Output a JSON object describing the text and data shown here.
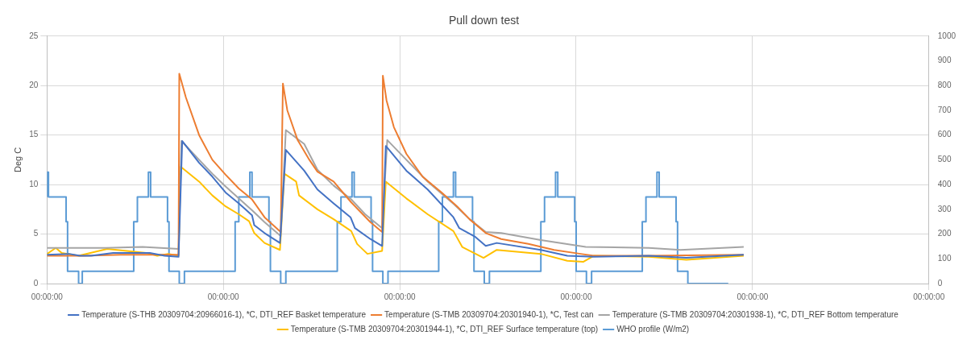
{
  "chart_data": {
    "type": "line",
    "title": "Pull down test",
    "ylabel": "Deg C",
    "xlim": [
      "--01-01T00:00",
      "--01-06T00:00"
    ],
    "xticks": [
      {
        "value": "--01-01T00:00",
        "label": "00:00:00"
      },
      {
        "value": "--01-02T00:00",
        "label": "00:00:00"
      },
      {
        "value": "--01-03T00:00",
        "label": "00:00:00"
      },
      {
        "value": "--01-04T00:00",
        "label": "00:00:00"
      },
      {
        "value": "--01-05T00:00",
        "label": "00:00:00"
      },
      {
        "value": "--01-06T00:00",
        "label": "00:00:00"
      }
    ],
    "ylim": [
      0,
      25
    ],
    "yticks": [
      0,
      5,
      10,
      15,
      20,
      25
    ],
    "y2lim": [
      0,
      1000
    ],
    "y2ticks": [
      0,
      100,
      200,
      300,
      400,
      500,
      600,
      700,
      800,
      900,
      1000
    ],
    "grid": true,
    "legend": "bottom",
    "line_style": "solid",
    "series": [
      {
        "name": "Temperature (S-THB 20309704:20966016-1), *C, DTI_REF Basket temperature",
        "color": "#4472c4",
        "x": [
          "--01-01T00:00",
          "--01-01T03:00",
          "--01-01T04:30",
          "--01-01T06:00",
          "--01-01T09:00",
          "--01-01T14:00",
          "--01-01T16:00",
          "--01-01T17:54",
          "--01-01T18:24",
          "--01-01T20:42",
          "--01-01T22:30",
          "--01-02T00:18",
          "--01-02T02:06",
          "--01-02T03:54",
          "--01-02T04:12",
          "--01-02T05:36",
          "--01-02T07:42",
          "--01-02T08:30",
          "--01-02T11:00",
          "--01-02T12:48",
          "--01-02T15:00",
          "--01-02T17:18",
          "--01-02T17:54",
          "--01-02T20:00",
          "--01-02T21:36",
          "--01-02T22:06",
          "--01-03T00:54",
          "--01-03T03:48",
          "--01-03T07:18",
          "--01-03T08:06",
          "--01-03T10:18",
          "--01-03T11:42",
          "--01-03T13:12",
          "--01-03T19:12",
          "--01-03T22:48",
          "--01-04T02:24",
          "--01-04T09:54",
          "--01-04T15:00",
          "--01-04T22:48"
        ],
        "values": [
          2.9,
          3.0,
          2.8,
          2.8,
          3.1,
          3.1,
          2.8,
          2.7,
          14.4,
          12.2,
          10.8,
          9.2,
          8.1,
          6.9,
          5.9,
          5.1,
          4.1,
          13.5,
          11.4,
          9.5,
          8.1,
          6.7,
          5.6,
          4.5,
          3.8,
          13.9,
          11.4,
          9.5,
          6.7,
          5.6,
          4.7,
          3.8,
          4.1,
          3.4,
          2.8,
          2.7,
          2.8,
          2.6,
          2.9
        ]
      },
      {
        "name": "Temperature (S-TMB 20309704:20301940-1), *C, Test can",
        "color": "#ed7d31",
        "x": [
          "--01-01T00:00",
          "--01-01T05:00",
          "--01-01T10:00",
          "--01-01T15:00",
          "--01-01T17:54",
          "--01-01T18:00",
          "--01-01T18:54",
          "--01-01T20:42",
          "--01-01T22:30",
          "--01-02T00:18",
          "--01-02T02:06",
          "--01-02T03:54",
          "--01-02T05:36",
          "--01-02T07:48",
          "--01-02T08:06",
          "--01-02T08:42",
          "--01-02T10:06",
          "--01-02T11:42",
          "--01-02T12:48",
          "--01-02T15:00",
          "--01-02T17:24",
          "--01-02T20:00",
          "--01-02T21:36",
          "--01-02T21:42",
          "--01-02T22:12",
          "--01-02T23:12",
          "--01-03T00:54",
          "--01-03T03:06",
          "--01-03T05:42",
          "--01-03T07:48",
          "--01-03T09:30",
          "--01-03T11:42",
          "--01-03T13:48",
          "--01-03T17:30",
          "--01-03T21:00",
          "--01-04T00:36",
          "--01-04T02:24",
          "--01-04T09:54",
          "--01-04T22:48"
        ],
        "values": [
          2.8,
          2.8,
          2.9,
          2.9,
          2.9,
          21.2,
          18.8,
          15.0,
          12.5,
          11.0,
          9.6,
          8.5,
          6.7,
          5.2,
          20.2,
          17.5,
          14.5,
          12.5,
          11.3,
          10.3,
          8.2,
          6.2,
          5.2,
          21.0,
          18.5,
          15.8,
          13.1,
          10.8,
          9.2,
          7.8,
          6.5,
          5.1,
          4.5,
          4.0,
          3.4,
          3.0,
          2.8,
          2.8,
          2.9
        ]
      },
      {
        "name": "Temperature (S-TMB 20309704:20301938-1), *C, DTI_REF Bottom temperature",
        "color": "#a5a5a5",
        "x": [
          "--01-01T00:00",
          "--01-01T08:00",
          "--01-01T13:00",
          "--01-01T17:54",
          "--01-01T18:18",
          "--01-01T20:42",
          "--01-01T22:30",
          "--01-02T00:18",
          "--01-02T02:06",
          "--01-02T03:54",
          "--01-02T05:36",
          "--01-02T07:48",
          "--01-02T08:30",
          "--01-02T11:00",
          "--01-02T12:48",
          "--01-02T15:00",
          "--01-02T17:24",
          "--01-02T19:18",
          "--01-02T21:36",
          "--01-02T22:18",
          "--01-03T00:54",
          "--01-03T03:48",
          "--01-03T07:24",
          "--01-03T09:30",
          "--01-03T11:42",
          "--01-03T13:48",
          "--01-03T19:12",
          "--01-04T01:18",
          "--01-04T09:54",
          "--01-04T14:12",
          "--01-04T22:48"
        ],
        "values": [
          3.6,
          3.6,
          3.7,
          3.5,
          14.4,
          12.5,
          11.1,
          9.8,
          8.6,
          7.4,
          6.2,
          4.8,
          15.5,
          14.1,
          11.5,
          9.9,
          8.5,
          7.0,
          5.6,
          14.5,
          12.5,
          10.3,
          8.0,
          6.5,
          5.2,
          5.1,
          4.4,
          3.7,
          3.6,
          3.4,
          3.7
        ]
      },
      {
        "name": "Temperature (S-TMB 20309704:20301944-1), *C, DTI_REF Surface temperature (top)",
        "color": "#ffc000",
        "x": [
          "--01-01T00:00",
          "--01-01T01:12",
          "--01-01T02:00",
          "--01-01T04:18",
          "--01-01T08:12",
          "--01-01T13:30",
          "--01-01T15:00",
          "--01-01T16:30",
          "--01-01T17:54",
          "--01-01T18:12",
          "--01-01T20:42",
          "--01-01T22:30",
          "--01-02T00:18",
          "--01-02T02:06",
          "--01-02T03:30",
          "--01-02T04:12",
          "--01-02T05:36",
          "--01-02T07:42",
          "--01-02T08:18",
          "--01-02T09:54",
          "--01-02T10:18",
          "--01-02T12:48",
          "--01-02T15:00",
          "--01-02T17:24",
          "--01-02T18:12",
          "--01-02T19:36",
          "--01-02T21:36",
          "--01-02T22:06",
          "--01-03T00:54",
          "--01-03T03:48",
          "--01-03T07:18",
          "--01-03T08:30",
          "--01-03T11:24",
          "--01-03T13:12",
          "--01-03T19:12",
          "--01-03T22:48",
          "--01-04T01:00",
          "--01-04T02:24",
          "--01-04T09:54",
          "--01-04T15:00",
          "--01-04T22:48"
        ],
        "values": [
          3.0,
          3.6,
          3.1,
          2.8,
          3.5,
          3.1,
          2.8,
          3.0,
          2.8,
          11.8,
          10.3,
          8.9,
          7.8,
          7.0,
          6.3,
          5.1,
          4.1,
          3.4,
          11.1,
          10.3,
          8.9,
          7.5,
          6.5,
          5.3,
          4.0,
          3.0,
          3.3,
          10.3,
          8.6,
          7.0,
          5.3,
          3.7,
          2.6,
          3.4,
          3.0,
          2.3,
          2.2,
          2.8,
          2.7,
          2.4,
          2.8
        ]
      },
      {
        "name": "WHO profile (W/m2)",
        "type": "step",
        "axis": "y2",
        "color": "#5b9bd5",
        "x": [
          "--01-01T00:00",
          "--01-01T00:12",
          "--01-01T02:36",
          "--01-01T02:48",
          "--01-01T04:18",
          "--01-01T04:48",
          "--01-01T11:48",
          "--01-01T12:18",
          "--01-01T13:48",
          "--01-01T14:06",
          "--01-01T16:24",
          "--01-01T16:36",
          "--01-01T18:00",
          "--01-01T18:42",
          "--01-02T01:36",
          "--01-02T02:06",
          "--01-02T03:36",
          "--01-02T03:54",
          "--01-02T06:12",
          "--01-02T06:24",
          "--01-02T07:48",
          "--01-02T08:30",
          "--01-02T15:30",
          "--01-02T16:00",
          "--01-02T17:30",
          "--01-02T17:48",
          "--01-02T20:06",
          "--01-02T20:18",
          "--01-02T21:42",
          "--01-02T22:24",
          "--01-03T05:18",
          "--01-03T05:48",
          "--01-03T07:18",
          "--01-03T07:36",
          "--01-03T09:54",
          "--01-03T10:06",
          "--01-03T11:30",
          "--01-03T12:12",
          "--01-03T19:12",
          "--01-03T19:42",
          "--01-03T21:12",
          "--01-03T21:30",
          "--01-03T23:48",
          "--01-04T00:00",
          "--01-04T01:24",
          "--01-04T02:06",
          "--01-04T09:00",
          "--01-04T09:30",
          "--01-04T11:00",
          "--01-04T11:18",
          "--01-04T13:36",
          "--01-04T13:48",
          "--01-04T15:12",
          "--01-04T15:54",
          "--01-04T20:42"
        ],
        "values": [
          350,
          450,
          350,
          250,
          50,
          0,
          50,
          250,
          350,
          450,
          350,
          250,
          50,
          0,
          50,
          250,
          350,
          450,
          350,
          250,
          50,
          0,
          50,
          250,
          350,
          450,
          350,
          250,
          50,
          0,
          50,
          250,
          350,
          450,
          350,
          250,
          50,
          0,
          50,
          250,
          350,
          450,
          350,
          250,
          50,
          0,
          50,
          250,
          350,
          450,
          350,
          250,
          50,
          0,
          0
        ]
      }
    ]
  }
}
